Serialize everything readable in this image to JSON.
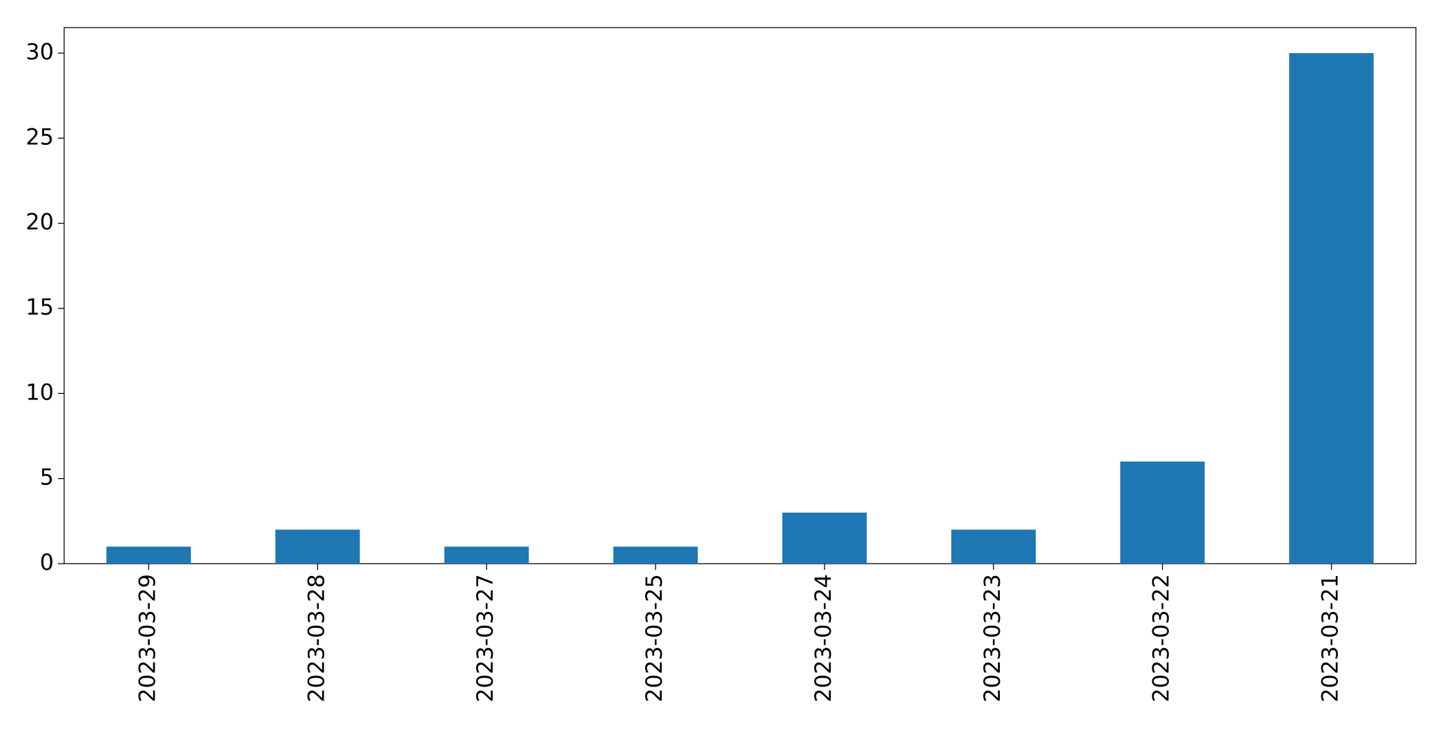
{
  "chart_data": {
    "type": "bar",
    "categories": [
      "2023-03-29",
      "2023-03-28",
      "2023-03-27",
      "2023-03-25",
      "2023-03-24",
      "2023-03-23",
      "2023-03-22",
      "2023-03-21"
    ],
    "values": [
      1,
      2,
      1,
      1,
      3,
      2,
      6,
      30
    ],
    "color": "#1f77b4",
    "ylim": [
      0,
      31.5
    ],
    "yticks": [
      0,
      5,
      10,
      15,
      20,
      25,
      30
    ],
    "grid": false
  }
}
